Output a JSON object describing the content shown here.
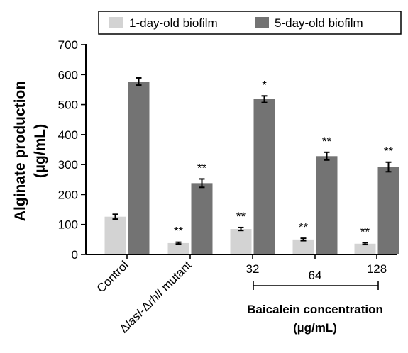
{
  "chart_data": {
    "type": "bar",
    "ylabel_lines": [
      "Alginate production",
      "(µg/mL)"
    ],
    "ylim": [
      0,
      700
    ],
    "yticks": [
      0,
      100,
      200,
      300,
      400,
      500,
      600,
      700
    ],
    "categories": [
      "Control",
      "ΔlasI-ΔrhlI mutant",
      "32",
      "64",
      "128"
    ],
    "mutant_label": {
      "prefix": "Δ",
      "gene1": "lasI",
      "sep": "-Δ",
      "gene2": "rhlI",
      "suffix": " mutant"
    },
    "series": [
      {
        "name": "1-day-old biofilm",
        "color": "#d3d3d3",
        "values": [
          126,
          38,
          85,
          50,
          36
        ],
        "errors": [
          8,
          3,
          5,
          4,
          3
        ],
        "significance": [
          "",
          "**",
          "**",
          "**",
          "**"
        ]
      },
      {
        "name": "5-day-old biofilm",
        "color": "#737373",
        "values": [
          577,
          238,
          518,
          328,
          292
        ],
        "errors": [
          12,
          14,
          11,
          13,
          16
        ],
        "significance": [
          "",
          "**",
          "*",
          "**",
          "**"
        ]
      }
    ],
    "group_bracket": {
      "label_lines": [
        "Baicalein concentration",
        "(µg/mL)"
      ]
    },
    "legend": "top-right",
    "grid": false
  }
}
